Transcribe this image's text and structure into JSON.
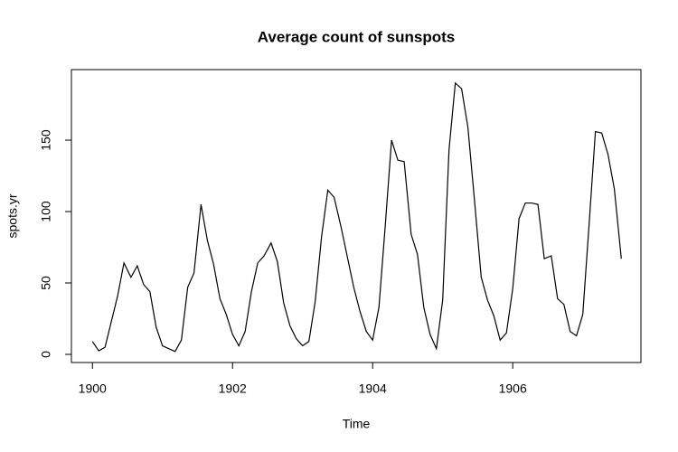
{
  "chart_data": {
    "type": "line",
    "title": "Average count of sunspots",
    "xlabel": "Time",
    "ylabel": "spots.yr",
    "x": [
      1900.0,
      1900.09,
      1900.18,
      1900.27,
      1900.36,
      1900.45,
      1900.55,
      1900.64,
      1900.73,
      1900.82,
      1900.91,
      1901.0,
      1901.09,
      1901.18,
      1901.27,
      1901.36,
      1901.45,
      1901.55,
      1901.64,
      1901.73,
      1901.82,
      1901.91,
      1902.0,
      1902.09,
      1902.18,
      1902.27,
      1902.36,
      1902.45,
      1902.55,
      1902.64,
      1902.73,
      1902.82,
      1902.91,
      1903.0,
      1903.09,
      1903.18,
      1903.27,
      1903.36,
      1903.45,
      1903.55,
      1903.64,
      1903.73,
      1903.82,
      1903.91,
      1904.0,
      1904.09,
      1904.18,
      1904.27,
      1904.36,
      1904.45,
      1904.55,
      1904.64,
      1904.73,
      1904.82,
      1904.91,
      1905.0,
      1905.09,
      1905.18,
      1905.27,
      1905.36,
      1905.45,
      1905.55,
      1905.64,
      1905.73,
      1905.82,
      1905.91,
      1906.0,
      1906.09,
      1906.18,
      1906.27,
      1906.36,
      1906.45,
      1906.55,
      1906.64,
      1906.73,
      1906.82,
      1906.91,
      1907.0,
      1907.09,
      1907.18,
      1907.27,
      1907.36,
      1907.45,
      1907.55
    ],
    "series": [
      {
        "name": "spots.yr",
        "color": "#000000",
        "values": [
          9,
          2.5,
          5,
          23,
          41,
          64,
          54,
          62,
          49,
          44,
          19,
          6,
          4,
          2,
          10,
          47,
          57,
          105,
          80,
          63,
          39,
          28,
          14,
          6,
          16,
          44,
          64,
          69,
          78,
          65,
          36,
          20,
          11,
          6,
          9,
          37,
          82,
          115,
          110,
          89,
          68,
          47,
          30,
          16,
          10,
          33,
          90,
          150,
          136,
          135,
          84,
          70,
          33,
          14,
          4,
          38,
          143,
          190,
          186,
          159,
          110,
          54,
          38,
          27,
          10,
          15,
          46,
          95,
          106,
          106,
          105,
          67,
          69,
          39,
          35,
          16,
          13,
          28,
          91,
          156,
          155,
          140,
          116,
          67
        ]
      }
    ],
    "xlim": [
      1899.7,
      1907.83
    ],
    "ylim": [
      -5.7,
      199.4
    ],
    "xticks": [
      1900,
      1902,
      1904,
      1906
    ],
    "yticks": [
      0,
      50,
      100,
      150
    ]
  }
}
